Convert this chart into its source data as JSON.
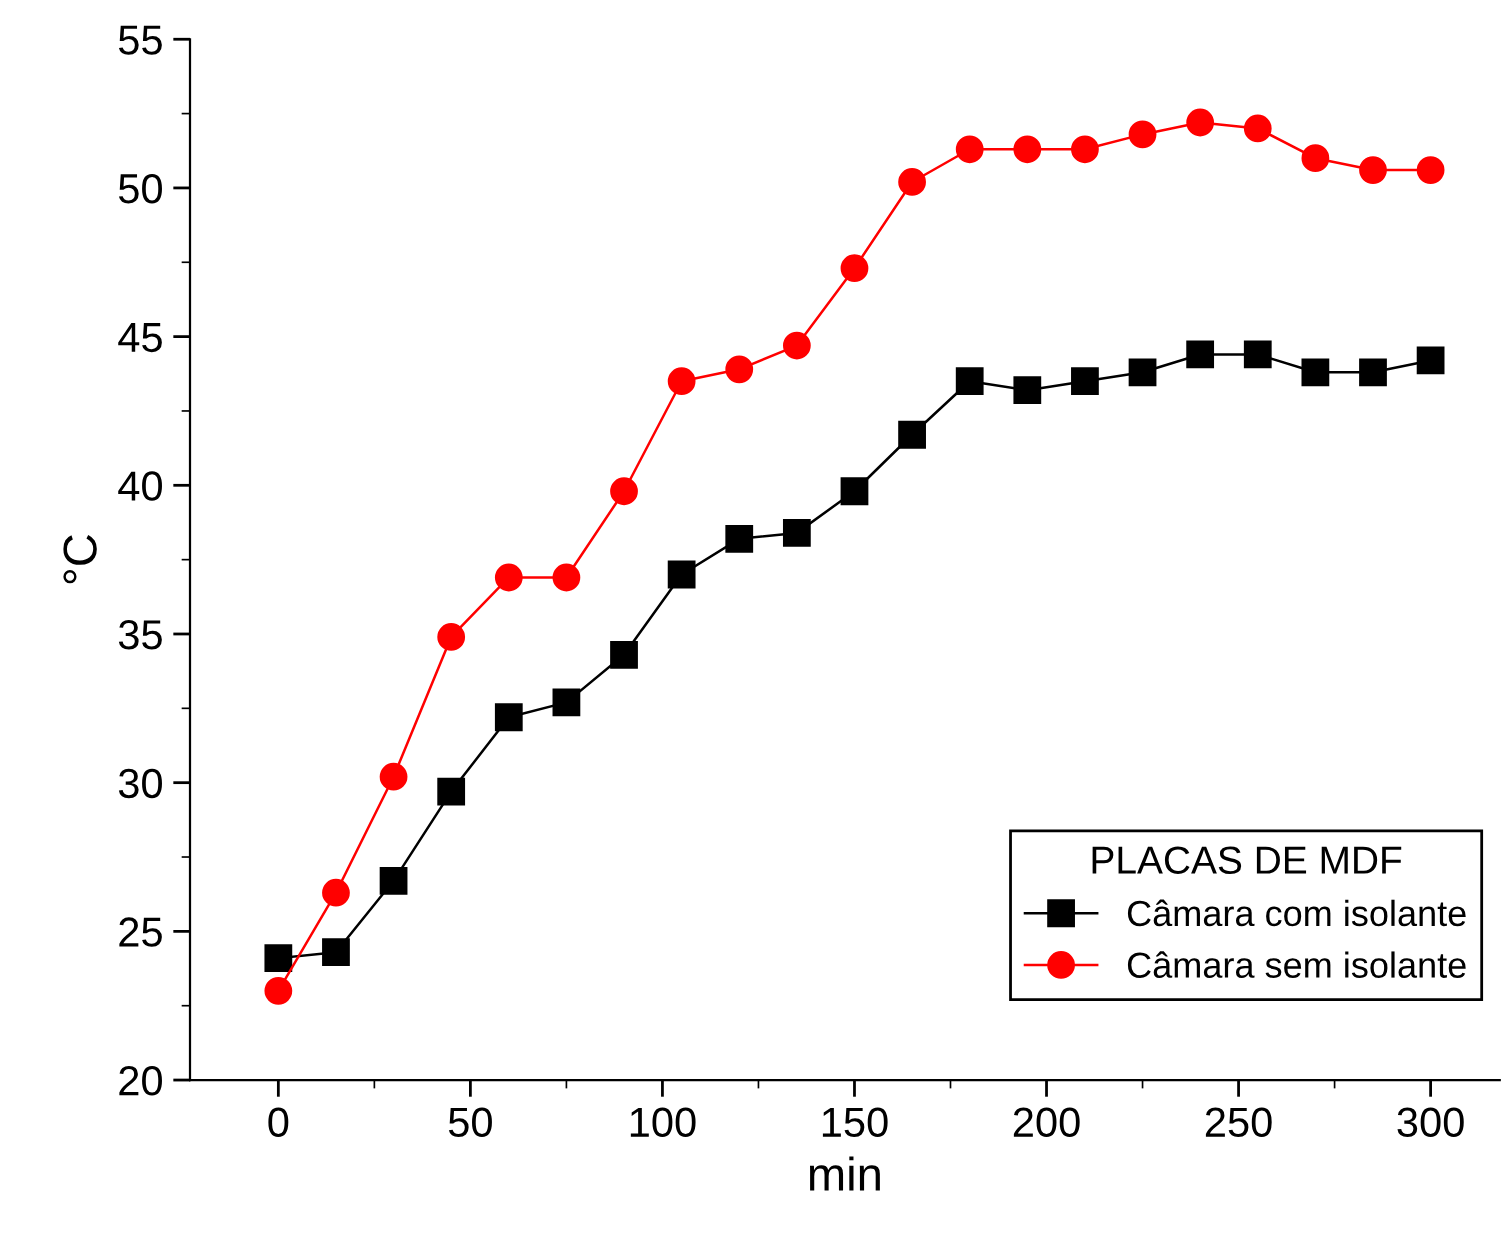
{
  "chart_data": {
    "type": "line",
    "xlabel": "min",
    "ylabel": "°C",
    "legend_title": "PLACAS DE MDF",
    "legend": "bottom right",
    "grid": false,
    "x": [
      0,
      15,
      30,
      45,
      60,
      75,
      90,
      105,
      120,
      135,
      150,
      165,
      180,
      195,
      210,
      225,
      240,
      255,
      270,
      285,
      300
    ],
    "series": [
      {
        "name": "Câmara com isolante",
        "color": "#000000",
        "marker": "square",
        "values": [
          24.1,
          24.3,
          26.7,
          29.7,
          32.2,
          32.7,
          34.3,
          37.0,
          38.2,
          38.4,
          39.8,
          41.7,
          43.5,
          43.2,
          43.5,
          43.8,
          44.4,
          44.4,
          43.8,
          43.8,
          44.2
        ]
      },
      {
        "name": "Câmara sem isolante",
        "color": "#ff0000",
        "marker": "circle",
        "values": [
          23.0,
          26.3,
          30.2,
          34.9,
          36.9,
          36.9,
          39.8,
          43.5,
          43.9,
          44.7,
          47.3,
          50.2,
          51.3,
          51.3,
          51.3,
          51.8,
          52.2,
          52.0,
          51.0,
          50.6,
          50.6
        ]
      }
    ],
    "xlim": [
      -23,
      318
    ],
    "xticks": [
      0,
      50,
      100,
      150,
      200,
      250,
      300
    ],
    "ylim": [
      20,
      55
    ],
    "yticks": [
      20,
      25,
      30,
      35,
      40,
      45,
      50,
      55
    ]
  }
}
